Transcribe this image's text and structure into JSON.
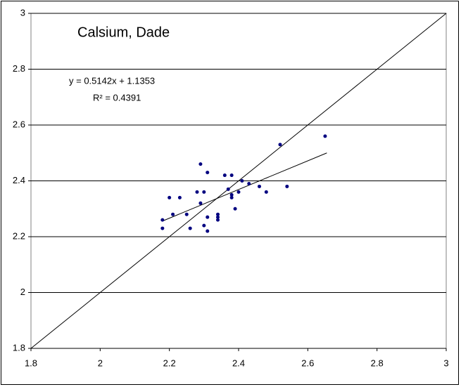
{
  "chart_data": {
    "type": "scatter",
    "title": "Calsium, Dade",
    "annotations": [
      "y = 0.5142x + 1.1353",
      "R² = 0.4391"
    ],
    "series": [
      {
        "color": "#000080",
        "x": [
          2.65,
          2.52,
          2.29,
          2.31,
          2.36,
          2.38,
          2.41,
          2.43,
          2.2,
          2.23,
          2.28,
          2.3,
          2.37,
          2.46,
          2.54,
          2.48,
          2.4,
          2.38,
          2.38,
          2.29,
          2.39,
          2.21,
          2.25,
          2.34,
          2.34,
          2.31,
          2.34,
          2.18,
          2.18,
          2.26,
          2.3,
          2.31
        ],
        "values": [
          2.56,
          2.53,
          2.46,
          2.43,
          2.42,
          2.42,
          2.4,
          2.39,
          2.34,
          2.34,
          2.36,
          2.36,
          2.37,
          2.38,
          2.38,
          2.36,
          2.36,
          2.35,
          2.34,
          2.32,
          2.3,
          2.28,
          2.28,
          2.28,
          2.27,
          2.27,
          2.26,
          2.26,
          2.23,
          2.23,
          2.24,
          2.22
        ]
      }
    ],
    "trendline": {
      "x": [
        2.18,
        2.655
      ],
      "values": [
        2.256,
        2.5
      ]
    },
    "reference_line": {
      "x": [
        1.8,
        3
      ],
      "values": [
        1.8,
        3
      ]
    },
    "xlim": [
      1.8,
      3
    ],
    "ylim": [
      1.8,
      3
    ],
    "xticks": [
      1.8,
      2,
      2.2,
      2.4,
      2.6,
      2.8,
      3
    ],
    "yticks": [
      1.8,
      2,
      2.2,
      2.4,
      2.6,
      2.8,
      3
    ],
    "grid": true
  }
}
